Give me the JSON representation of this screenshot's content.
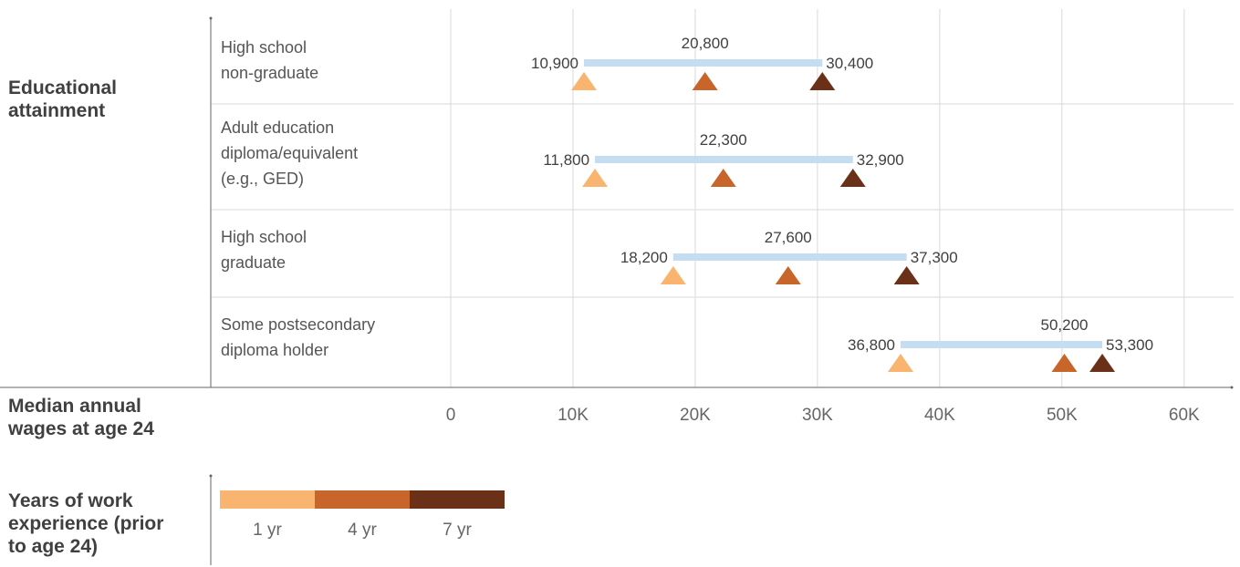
{
  "sections": {
    "education_title": "Educational attainment",
    "wages_title": "Median annual wages at age 24",
    "experience_title": "Years of work experience (prior to age 24)"
  },
  "colors": {
    "yr1": "#F9B46F",
    "yr4": "#C8652A",
    "yr7": "#6B3018",
    "range_bar": "#C5DDF0",
    "grid": "#D9D9D9",
    "axis": "#666666"
  },
  "chart_data": {
    "type": "range-dot",
    "categories": [
      [
        "High school",
        "non-graduate"
      ],
      [
        "Adult education",
        "diploma/equivalent",
        "(e.g., GED)"
      ],
      [
        "High school",
        "graduate"
      ],
      [
        "Some postsecondary",
        "diploma holder"
      ]
    ],
    "series": [
      {
        "name": "1 yr",
        "values": [
          10900,
          11800,
          18200,
          36800
        ]
      },
      {
        "name": "4 yr",
        "values": [
          20800,
          22300,
          27600,
          50200
        ]
      },
      {
        "name": "7 yr",
        "values": [
          30400,
          32900,
          37300,
          53300
        ]
      }
    ],
    "value_labels": [
      [
        "10,900",
        "20,800",
        "30,400"
      ],
      [
        "11,800",
        "22,300",
        "32,900"
      ],
      [
        "18,200",
        "27,600",
        "37,300"
      ],
      [
        "36,800",
        "50,200",
        "53,300"
      ]
    ],
    "xlim": [
      0,
      62000
    ],
    "xticks": [
      0,
      10000,
      20000,
      30000,
      40000,
      50000,
      60000
    ],
    "xtick_labels": [
      "0",
      "10K",
      "20K",
      "30K",
      "40K",
      "50K",
      "60K"
    ],
    "grid": true,
    "legend_position": "bottom-left"
  }
}
